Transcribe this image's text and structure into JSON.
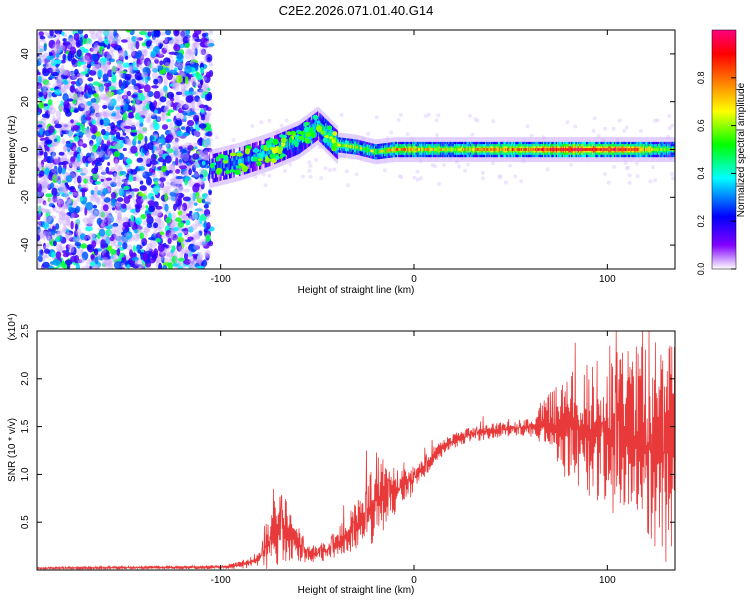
{
  "title": "C2E2.2026.071.01.40.G14",
  "chart_data": [
    {
      "type": "heatmap",
      "title": "C2E2.2026.071.01.40.G14",
      "xlabel": "Height of straight line (km)",
      "ylabel": "Frequency (Hz)",
      "xlim": [
        -195,
        135
      ],
      "ylim": [
        -50,
        50
      ],
      "x_ticks": [
        -100,
        0,
        100
      ],
      "x_tick_labels": [
        "-100",
        "0",
        "100"
      ],
      "y_ticks": [
        -40,
        -20,
        0,
        20,
        40
      ],
      "y_tick_labels": [
        "-40",
        "-20",
        "0",
        "20",
        "40"
      ],
      "colorbar": {
        "label": "Normalized spectral amplitude",
        "range": [
          0,
          1
        ],
        "ticks": [
          0.0,
          0.2,
          0.4,
          0.6,
          0.8
        ],
        "tick_labels": [
          "0.0",
          "0.2",
          "0.4",
          "0.6",
          "0.8"
        ],
        "colormap": [
          "#ffffff",
          "#8000ff",
          "#0000ff",
          "#00ffff",
          "#00ff00",
          "#ffff00",
          "#ff8000",
          "#ff0000",
          "#ff0080"
        ]
      },
      "ridge": {
        "x": [
          -105,
          -90,
          -75,
          -60,
          -50,
          -40,
          -30,
          -20,
          -10,
          0,
          20,
          50,
          80,
          110,
          135
        ],
        "freq": [
          -8,
          -5,
          -1,
          4,
          10,
          2,
          1,
          -1,
          0,
          0,
          0,
          0,
          0,
          0,
          0
        ],
        "amplitude": [
          0.25,
          0.3,
          0.35,
          0.4,
          0.45,
          0.6,
          0.6,
          0.55,
          0.75,
          0.7,
          0.65,
          0.8,
          0.95,
          0.9,
          0.5
        ]
      },
      "noise_region": {
        "x_from": -195,
        "x_to": -105,
        "amplitude": 0.15
      }
    },
    {
      "type": "line",
      "xlabel": "Height of straight line (km)",
      "ylabel": "SNR (10 * v/v)",
      "y_multiplier_label": "(x10⁴)",
      "xlim": [
        -195,
        135
      ],
      "ylim": [
        0,
        2.5
      ],
      "x_ticks": [
        -100,
        0,
        100
      ],
      "x_tick_labels": [
        "-100",
        "0",
        "100"
      ],
      "y_ticks": [
        0.5,
        1.0,
        1.5,
        2.0,
        2.5
      ],
      "y_tick_labels": [
        "0.5",
        "1.0",
        "1.5",
        "2.0",
        "2.5"
      ],
      "series": [
        {
          "name": "SNR",
          "color": "#e83a3a",
          "envelope_x": [
            -195,
            -100,
            -90,
            -80,
            -75,
            -70,
            -65,
            -55,
            -45,
            -35,
            -25,
            -20,
            -10,
            0,
            10,
            20,
            30,
            40,
            50,
            60,
            70,
            80,
            90,
            100,
            110,
            120,
            125,
            135
          ],
          "envelope_y": [
            0.02,
            0.03,
            0.05,
            0.12,
            0.3,
            0.45,
            0.4,
            0.15,
            0.2,
            0.35,
            0.6,
            0.75,
            0.82,
            0.95,
            1.2,
            1.35,
            1.42,
            1.45,
            1.48,
            1.5,
            1.52,
            1.5,
            1.45,
            1.4,
            1.35,
            1.3,
            1.25,
            1.2
          ],
          "spread_y": [
            0.01,
            0.02,
            0.04,
            0.08,
            0.3,
            0.4,
            0.3,
            0.1,
            0.1,
            0.2,
            0.3,
            0.5,
            0.25,
            0.15,
            0.1,
            0.08,
            0.08,
            0.08,
            0.08,
            0.1,
            0.25,
            0.45,
            0.55,
            0.65,
            0.75,
            0.85,
            0.9,
            0.9
          ]
        }
      ]
    }
  ],
  "colors": {
    "axis": "#000000",
    "background": "#ffffff",
    "line": "#e83a3a"
  }
}
